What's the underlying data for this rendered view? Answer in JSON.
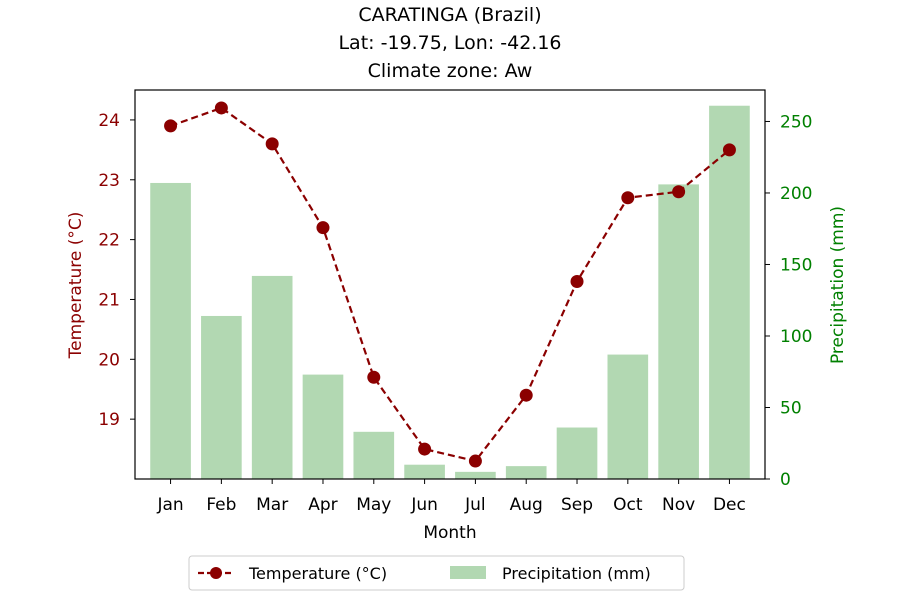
{
  "chart_data": {
    "type": "bar+line",
    "title_lines": [
      "CARATINGA (Brazil)",
      "Lat: -19.75, Lon: -42.16",
      "Climate zone: Aw"
    ],
    "xlabel": "Month",
    "ylabel_left": "Temperature (°C)",
    "ylabel_right": "Precipitation (mm)",
    "categories": [
      "Jan",
      "Feb",
      "Mar",
      "Apr",
      "May",
      "Jun",
      "Jul",
      "Aug",
      "Sep",
      "Oct",
      "Nov",
      "Dec"
    ],
    "series": [
      {
        "name": "Temperature (°C)",
        "kind": "line",
        "axis": "left",
        "color": "#8b0000",
        "values": [
          23.9,
          24.2,
          23.6,
          22.2,
          19.7,
          18.5,
          18.3,
          19.4,
          21.3,
          22.7,
          22.8,
          23.5
        ]
      },
      {
        "name": "Precipitation (mm)",
        "kind": "bar",
        "axis": "right",
        "color": "#b2d8b2",
        "values": [
          207,
          114,
          142,
          73,
          33,
          10,
          5,
          9,
          36,
          87,
          206,
          261
        ]
      }
    ],
    "ylim_left": [
      18.0,
      24.5
    ],
    "yticks_left": [
      19,
      20,
      21,
      22,
      23,
      24
    ],
    "ylim_right": [
      0,
      272
    ],
    "yticks_right": [
      0,
      50,
      100,
      150,
      200,
      250
    ],
    "left_axis_color": "#8b0000",
    "right_axis_color": "#008000",
    "grid": false,
    "legend_position": "bottom-center"
  }
}
